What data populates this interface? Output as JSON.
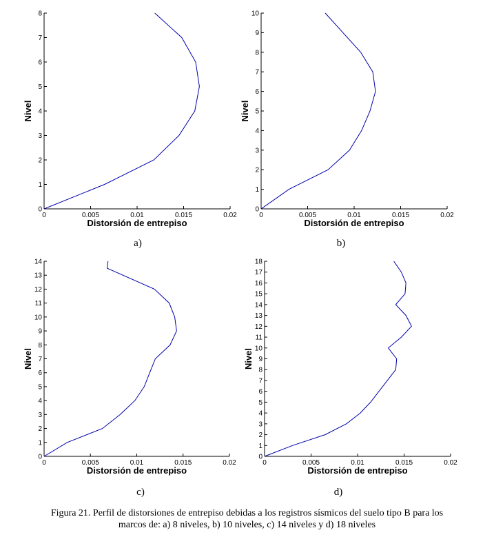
{
  "figure": {
    "caption_line1": "Figura 21. Perfil de distorsiones de entrepiso debidas a los registros sísmicos del suelo tipo B para los",
    "caption_line2": "marcos de: a) 8 niveles, b) 10 niveles, c) 14 niveles y d) 18 niveles"
  },
  "colors": {
    "line": "#0000aa",
    "axis": "#000000"
  },
  "chart_data": [
    {
      "type": "line",
      "sublabel": "a)",
      "xlabel": "Distorsión de entrepiso",
      "ylabel": "Nivel",
      "xlim": [
        0,
        0.02
      ],
      "ylim": [
        0,
        8
      ],
      "xticks": [
        "0",
        "0.005",
        "0.01",
        "0.015",
        "0.02"
      ],
      "yticks": [
        "0",
        "1",
        "2",
        "3",
        "4",
        "5",
        "6",
        "7",
        "8"
      ],
      "x": [
        0,
        0.0065,
        0.0118,
        0.0145,
        0.0162,
        0.0167,
        0.0163,
        0.0148,
        0.0119
      ],
      "y": [
        0,
        1,
        2,
        3,
        4,
        5,
        6,
        7,
        8
      ]
    },
    {
      "type": "line",
      "sublabel": "b)",
      "xlabel": "Distorsión de entrepiso",
      "ylabel": "Nivel",
      "xlim": [
        0,
        0.02
      ],
      "ylim": [
        0,
        10
      ],
      "xticks": [
        "0",
        "0.005",
        "0.01",
        "0.015",
        "0.02"
      ],
      "yticks": [
        "0",
        "1",
        "2",
        "3",
        "4",
        "5",
        "6",
        "7",
        "8",
        "9",
        "10"
      ],
      "x": [
        0,
        0.003,
        0.0072,
        0.0095,
        0.0108,
        0.0117,
        0.0123,
        0.012,
        0.0107,
        0.0088,
        0.0069
      ],
      "y": [
        0,
        1,
        2,
        3,
        4,
        5,
        6,
        7,
        8,
        9,
        10
      ]
    },
    {
      "type": "line",
      "sublabel": "c)",
      "xlabel": "Distorsión de entrepiso",
      "ylabel": "Nivel",
      "xlim": [
        0,
        0.02
      ],
      "ylim": [
        0,
        14
      ],
      "xticks": [
        "0",
        "0.005",
        "0.01",
        "0.015",
        "0.02"
      ],
      "yticks": [
        "0",
        "1",
        "2",
        "3",
        "4",
        "5",
        "6",
        "7",
        "8",
        "9",
        "10",
        "11",
        "12",
        "13",
        "14"
      ],
      "x": [
        0,
        0.0025,
        0.0063,
        0.0082,
        0.0098,
        0.0108,
        0.0114,
        0.012,
        0.0136,
        0.0143,
        0.0141,
        0.0135,
        0.0119,
        0.0068,
        0.0069
      ],
      "y": [
        0,
        1,
        2,
        3,
        4,
        5,
        6,
        7,
        8,
        9,
        10,
        11,
        12,
        13.5,
        14
      ]
    },
    {
      "type": "line",
      "sublabel": "d)",
      "xlabel": "Distorsión de entrepiso",
      "ylabel": "Nivel",
      "xlim": [
        0,
        0.02
      ],
      "ylim": [
        0,
        18
      ],
      "xticks": [
        "0",
        "0.005",
        "0.01",
        "0.015",
        "0.02"
      ],
      "yticks": [
        "0",
        "1",
        "2",
        "3",
        "4",
        "5",
        "6",
        "7",
        "8",
        "9",
        "10",
        "11",
        "12",
        "13",
        "14",
        "15",
        "16",
        "17",
        "18"
      ],
      "x": [
        0,
        0.003,
        0.0065,
        0.0088,
        0.0103,
        0.0114,
        0.0123,
        0.0132,
        0.0141,
        0.0142,
        0.0133,
        0.0147,
        0.0158,
        0.0152,
        0.0141,
        0.0151,
        0.0152,
        0.0147,
        0.0139
      ],
      "y": [
        0,
        1,
        2,
        3,
        4,
        5,
        6,
        7,
        8,
        9,
        10,
        11,
        12,
        13,
        14,
        15,
        16,
        17,
        18
      ]
    }
  ]
}
